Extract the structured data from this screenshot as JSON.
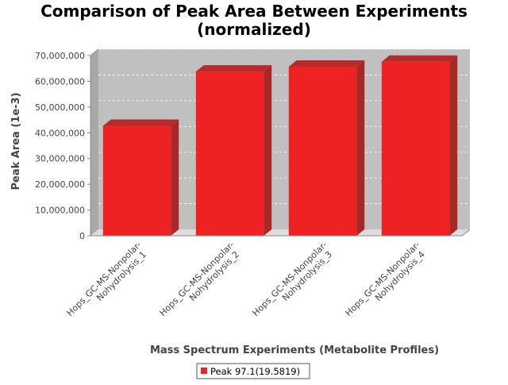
{
  "chart_data": {
    "type": "bar",
    "title_lines": [
      "Comparison of Peak Area Between Experiments",
      "(normalized)"
    ],
    "xlabel": "Mass Spectrum Experiments (Metabolite Profiles)",
    "ylabel": "Peak Area (1e-3)",
    "ylim": [
      0,
      70000000
    ],
    "yticks": [
      0,
      10000000,
      20000000,
      30000000,
      40000000,
      50000000,
      60000000,
      70000000
    ],
    "ytick_labels": [
      "0",
      "10,000,000",
      "20,000,000",
      "30,000,000",
      "40,000,000",
      "50,000,000",
      "60,000,000",
      "70,000,000"
    ],
    "categories": [
      [
        "Hops_GC-MS-Nonpolar-",
        "Nohydrolysis_1"
      ],
      [
        "Hops_GC-MS-Nonpolar-",
        "Nohydrolysis_2"
      ],
      [
        "Hops_GC-MS-Nonpolar-",
        "Nohydrolysis_3"
      ],
      [
        "Hops_GC-MS-Nonpolar-",
        "Nohydrolysis_4"
      ]
    ],
    "series": [
      {
        "name": "Peak 97.1(19.5819)",
        "color": "#ee2222",
        "values": [
          42700000,
          63800000,
          65700000,
          67600000
        ]
      }
    ],
    "grid": true,
    "legend_position": "bottom"
  }
}
